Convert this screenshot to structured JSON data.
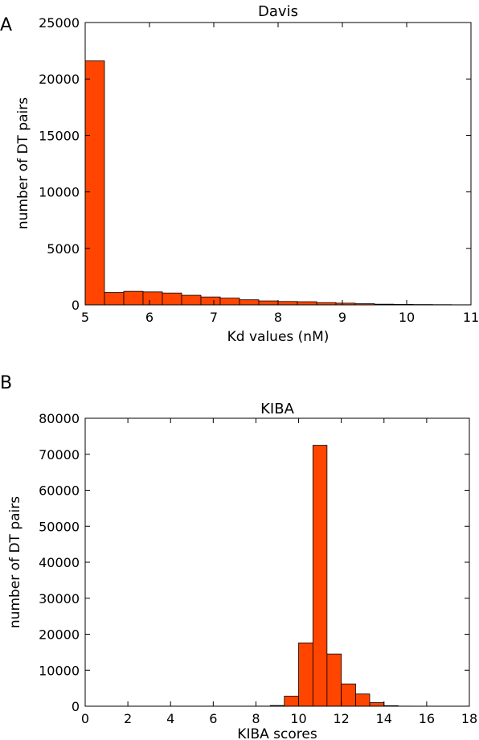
{
  "chart_data": [
    {
      "type": "bar",
      "panel_label": "A",
      "title": "Davis",
      "xlabel": "Kd values (nM)",
      "ylabel": "number of DT pairs",
      "xlim": [
        5,
        11
      ],
      "ylim": [
        0,
        25000
      ],
      "xticks": [
        5,
        6,
        7,
        8,
        9,
        10,
        11
      ],
      "yticks": [
        0,
        5000,
        10000,
        15000,
        20000,
        25000
      ],
      "bar_color": "#ff4500",
      "bin_edges": [
        5.0,
        5.3,
        5.6,
        5.9,
        6.2,
        6.5,
        6.8,
        7.1,
        7.4,
        7.7,
        8.0,
        8.3,
        8.6,
        8.9,
        9.2,
        9.5,
        9.8,
        10.1,
        10.4,
        10.7,
        11.0
      ],
      "values": [
        21600,
        1100,
        1200,
        1150,
        1050,
        850,
        700,
        600,
        450,
        350,
        300,
        280,
        200,
        150,
        100,
        60,
        40,
        30,
        20,
        10
      ]
    },
    {
      "type": "bar",
      "panel_label": "B",
      "title": "KIBA",
      "xlabel": "KIBA scores",
      "ylabel": "number of DT pairs",
      "xlim": [
        0,
        18
      ],
      "ylim": [
        0,
        80000
      ],
      "xticks": [
        0,
        2,
        4,
        6,
        8,
        10,
        12,
        14,
        16,
        18
      ],
      "yticks": [
        0,
        10000,
        20000,
        30000,
        40000,
        50000,
        60000,
        70000,
        80000
      ],
      "bar_color": "#ff4500",
      "bin_edges": [
        8.0,
        8.67,
        9.33,
        10.0,
        10.67,
        11.33,
        12.0,
        12.67,
        13.33,
        14.0,
        14.67,
        15.33,
        16.0
      ],
      "values": [
        30,
        200,
        2800,
        17600,
        72500,
        14500,
        6200,
        3400,
        1000,
        150,
        30,
        0
      ]
    }
  ]
}
